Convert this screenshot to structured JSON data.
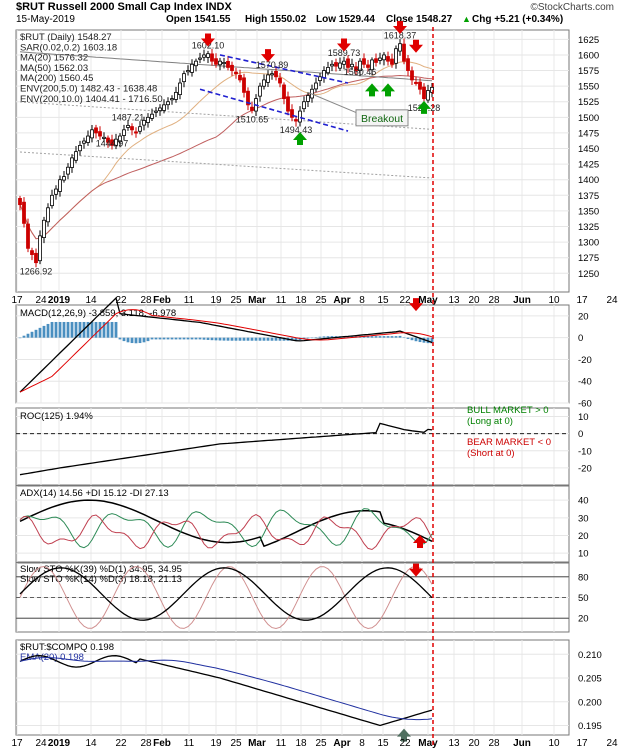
{
  "header": {
    "symbol_title": "$RUT Russell 2000 Small Cap Index INDX",
    "date": "15-May-2019",
    "open": "Open 1541.55",
    "high": "High 1550.02",
    "low": "Low 1529.44",
    "close": "Close 1548.27",
    "chg": "Chg +5.21 (+0.34%)",
    "chg_arrow": "▲",
    "logo": "©StockCharts.com"
  },
  "colors": {
    "price_up": "#000000",
    "price_down": "#cc0000",
    "sar": "#9a9aa8",
    "ma20": "#e0b080",
    "ma50": "#c06060",
    "ma200": "#808080",
    "env": "#a0a0a0",
    "arrow_red": "#e00000",
    "arrow_green": "#00a000",
    "trend_blue": "#2020d0",
    "macd_hist": "#4a8fc0",
    "red_dashed": "#e00000",
    "bull_text": "#008000",
    "bear_text": "#cc0000"
  },
  "chart_data": [
    {
      "type": "line",
      "name": "price",
      "title": "$RUT (Daily) 1548.27",
      "legend": [
        "$RUT (Daily) 1548.27",
        "SAR(0.02,0.2) 1603.18",
        "MA(20) 1576.32",
        "MA(50) 1562.03",
        "MA(200) 1560.45",
        "ENV(200,5.0) 1482.43 - 1638.48",
        "ENV(200,10.0) 1404.41 - 1716.50"
      ],
      "ylim": [
        1220,
        1640
      ],
      "yticks": [
        1250,
        1275,
        1300,
        1325,
        1350,
        1375,
        1400,
        1425,
        1450,
        1475,
        1500,
        1525,
        1550,
        1575,
        1600,
        1625
      ],
      "xticks": [
        "17",
        "24",
        "2019",
        "14",
        "22",
        "28",
        "Feb",
        "11",
        "19",
        "25",
        "Mar",
        "11",
        "18",
        "25",
        "Apr",
        "8",
        "15",
        "22",
        "May",
        "13",
        "20",
        "28",
        "Jun",
        "10",
        "17",
        "24"
      ],
      "close": [
        1360,
        1330,
        1290,
        1280,
        1267,
        1310,
        1335,
        1355,
        1375,
        1385,
        1400,
        1405,
        1420,
        1435,
        1445,
        1455,
        1462,
        1470,
        1480,
        1475,
        1470,
        1468,
        1460,
        1455,
        1465,
        1470,
        1480,
        1487,
        1480,
        1475,
        1485,
        1495,
        1500,
        1505,
        1510,
        1515,
        1520,
        1525,
        1530,
        1540,
        1555,
        1570,
        1575,
        1585,
        1590,
        1595,
        1600,
        1602,
        1590,
        1585,
        1590,
        1588,
        1580,
        1575,
        1570,
        1560,
        1540,
        1520,
        1511,
        1530,
        1550,
        1560,
        1568,
        1570,
        1565,
        1555,
        1530,
        1510,
        1500,
        1494,
        1510,
        1525,
        1535,
        1545,
        1555,
        1565,
        1575,
        1580,
        1585,
        1582,
        1587,
        1590,
        1580,
        1585,
        1575,
        1590,
        1585,
        1580,
        1592,
        1588,
        1595,
        1600,
        1590,
        1585,
        1610,
        1618,
        1590,
        1575,
        1560,
        1555,
        1545,
        1530,
        1543,
        1548
      ],
      "annotations": [
        {
          "text": "1266.92",
          "x": 4,
          "y": 1267
        },
        {
          "text": "1444.97",
          "x": 23,
          "y": 1445
        },
        {
          "text": "1487.21",
          "x": 27,
          "y": 1487
        },
        {
          "text": "1602.10",
          "x": 47,
          "y": 1602
        },
        {
          "text": "1510.65",
          "x": 58,
          "y": 1511
        },
        {
          "text": "1570.89",
          "x": 63,
          "y": 1571
        },
        {
          "text": "1494.43",
          "x": 69,
          "y": 1494
        },
        {
          "text": "1589.73",
          "x": 81,
          "y": 1590
        },
        {
          "text": "1618.37",
          "x": 95,
          "y": 1618
        },
        {
          "text": "1560.46",
          "x": 85,
          "y": 1560
        },
        {
          "text": "1529.28",
          "x": 101,
          "y": 1529
        }
      ],
      "callout": "Breakout"
    },
    {
      "type": "line",
      "name": "macd",
      "legend": "MACD(12,26,9) -3.859, 3.118, -6.978",
      "series_values": [
        "-3.859",
        "3.118",
        "-6.978"
      ],
      "ylim": [
        -60,
        30
      ],
      "yticks": [
        20,
        0,
        -20,
        -40,
        -60
      ]
    },
    {
      "type": "line",
      "name": "roc",
      "legend": "ROC(125) 1.94%",
      "ylim": [
        -30,
        15
      ],
      "yticks": [
        10,
        0,
        -10,
        -20
      ],
      "notes": [
        "BULL MARKET > 0",
        "(Long at 0)",
        "BEAR MARKET < 0",
        "(Short at 0)"
      ]
    },
    {
      "type": "line",
      "name": "adx",
      "legend": "ADX(14) 14.56 +DI 15.12 -DI 27.13",
      "ylim": [
        5,
        48
      ],
      "yticks": [
        40,
        30,
        20,
        10
      ]
    },
    {
      "type": "line",
      "name": "stochastics",
      "legend": [
        "Slow STO %K(39) %D(1) 34.95, 34.95",
        "Slow STO %K(14) %D(3) 18.18, 21.13"
      ],
      "ylim": [
        0,
        100
      ],
      "yticks": [
        80,
        50,
        20
      ]
    },
    {
      "type": "line",
      "name": "relative",
      "legend": [
        "$RUT:$COMPQ 0.198",
        "EMA(20) 0.198"
      ],
      "ylim": [
        0.193,
        0.213
      ],
      "yticks": [
        0.21,
        0.205,
        0.2,
        0.195
      ],
      "ytick_labels": [
        "0.210",
        "0.205",
        "0.200",
        "0.195"
      ],
      "xticks": [
        "17",
        "24",
        "2019",
        "14",
        "22",
        "28",
        "Feb",
        "11",
        "19",
        "25",
        "Mar",
        "11",
        "18",
        "25",
        "Apr",
        "8",
        "15",
        "22",
        "May",
        "13",
        "20",
        "28",
        "Jun",
        "10",
        "17",
        "24"
      ]
    }
  ]
}
